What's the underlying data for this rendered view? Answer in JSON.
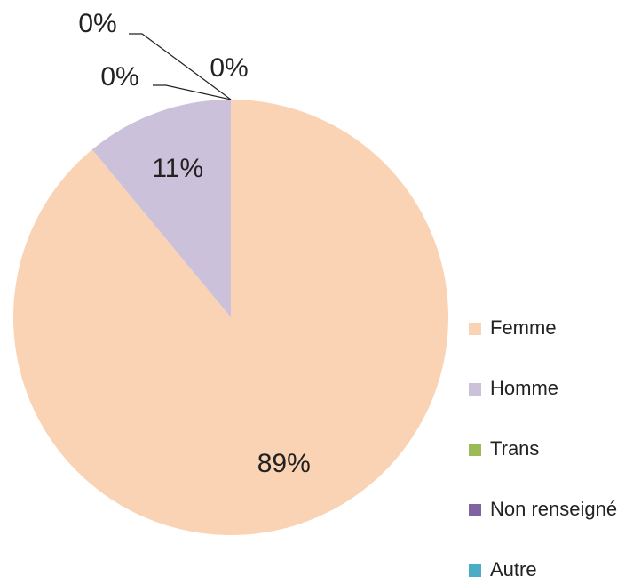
{
  "chart_data": {
    "type": "pie",
    "categories": [
      "Femme",
      "Homme",
      "Trans",
      "Non renseigné",
      "Autre"
    ],
    "values": [
      89,
      11,
      0,
      0,
      0
    ],
    "value_labels": [
      "89%",
      "11%",
      "0%",
      "0%",
      "0%"
    ],
    "colors": [
      "#fad3b4",
      "#ccc1da",
      "#9bbb59",
      "#8064a2",
      "#4bacc6"
    ],
    "legend": "right"
  }
}
